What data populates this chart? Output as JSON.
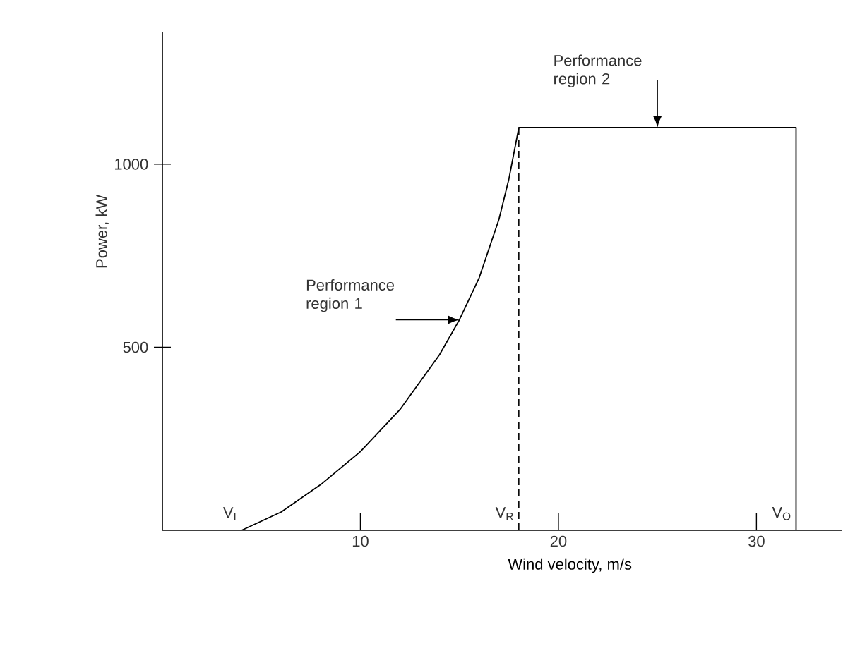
{
  "chart_data": {
    "type": "line",
    "xlabel": "Wind velocity, m/s",
    "ylabel": "Power, kW",
    "xlim": [
      0,
      34.3
    ],
    "ylim": [
      0,
      1360
    ],
    "xticks": [
      10,
      20,
      30
    ],
    "yticks": [
      500,
      1000
    ],
    "series": [
      {
        "color": "#000000",
        "x": [
          4,
          6,
          8,
          10,
          12,
          14,
          15,
          16,
          17,
          17.5,
          18,
          32,
          32
        ],
        "values": [
          0,
          50,
          125,
          215,
          330,
          480,
          575,
          690,
          850,
          960,
          1100,
          1100,
          0
        ]
      }
    ],
    "ref_lines": [
      {
        "axis": "x",
        "value": 18,
        "line_style": "dashed"
      }
    ],
    "annotations": [
      {
        "text": "Performance region 1",
        "x": 15,
        "y": 575
      },
      {
        "text": "Performance region 2",
        "x": 25,
        "y": 1100
      },
      {
        "text": "V$_{I}$",
        "x": 4,
        "y": 0
      },
      {
        "text": "V$_{R}$",
        "x": 18,
        "y": 0
      },
      {
        "text": "V$_{O}$",
        "x": 32,
        "y": 0
      }
    ],
    "grid": false,
    "marker": "none",
    "line_style": "solid"
  }
}
